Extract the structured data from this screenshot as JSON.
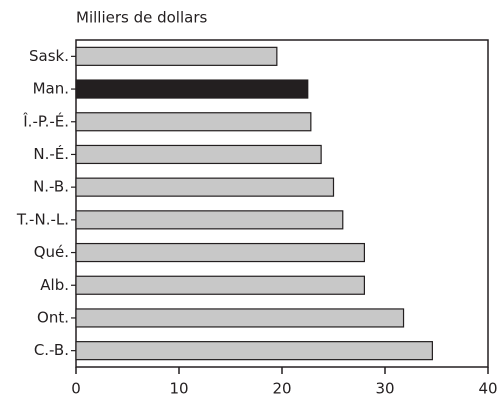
{
  "chart_data": {
    "type": "bar",
    "orientation": "horizontal",
    "title": "Milliers de dollars",
    "categories": [
      "Sask.",
      "Man.",
      "Î.-P.-É.",
      "N.-É.",
      "N.-B.",
      "T.-N.-L.",
      "Qué.",
      "Alb.",
      "Ont.",
      "C.-B."
    ],
    "values": [
      19.5,
      22.5,
      22.8,
      23.8,
      25.0,
      25.9,
      28.0,
      28.0,
      31.8,
      34.6
    ],
    "colors": [
      "#c8c8c8",
      "#231f20",
      "#c8c8c8",
      "#c8c8c8",
      "#c8c8c8",
      "#c8c8c8",
      "#c8c8c8",
      "#c8c8c8",
      "#c8c8c8",
      "#c8c8c8"
    ],
    "xlim": [
      0,
      40
    ],
    "xticks": [
      0,
      10,
      20,
      30,
      40
    ],
    "grid": false
  }
}
